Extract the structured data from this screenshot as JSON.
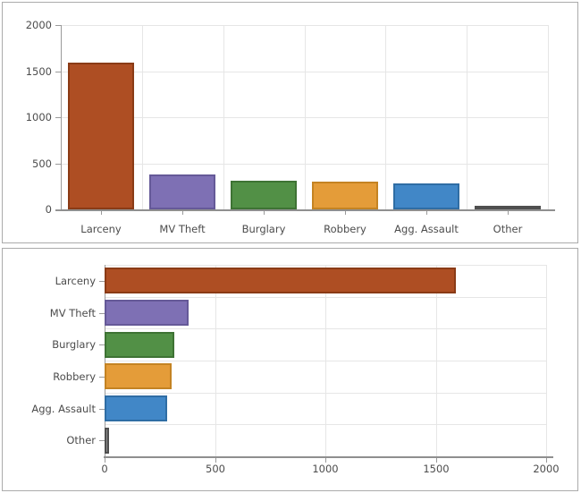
{
  "style": {
    "background": "#FFFFFF",
    "panel_border_color": "#ABABAB",
    "axis_color": "#9A9A9A",
    "baseline_color": "#8F8F8F",
    "grid_color": "#E6E6E6",
    "text_color": "#4C4C4C"
  },
  "chart_data": [
    {
      "type": "bar",
      "orientation": "vertical",
      "title": "",
      "xlabel": "",
      "ylabel": "",
      "categories": [
        "Larceny",
        "MV Theft",
        "Burglary",
        "Robbery",
        "Agg. Assault",
        "Other"
      ],
      "values": [
        1590,
        380,
        315,
        305,
        285,
        20
      ],
      "bar_colors": [
        "#AE4E23",
        "#7E70B4",
        "#529046",
        "#E49C39",
        "#4187C7",
        "#8A8A8A"
      ],
      "bar_border_colors": [
        "#8A3B16",
        "#655998",
        "#3E7334",
        "#C48323",
        "#2F6DA4",
        "#4F4F4F"
      ],
      "value_axis": {
        "ticks": [
          0,
          500,
          1000,
          1500,
          2000
        ],
        "lim": [
          0,
          2000
        ]
      },
      "grid": true,
      "legend": "none"
    },
    {
      "type": "bar",
      "orientation": "horizontal",
      "title": "",
      "xlabel": "",
      "ylabel": "",
      "categories": [
        "Larceny",
        "MV Theft",
        "Burglary",
        "Robbery",
        "Agg. Assault",
        "Other"
      ],
      "values": [
        1590,
        380,
        315,
        305,
        285,
        20
      ],
      "bar_colors": [
        "#AE4E23",
        "#7E70B4",
        "#529046",
        "#E49C39",
        "#4187C7",
        "#8A8A8A"
      ],
      "bar_border_colors": [
        "#8A3B16",
        "#655998",
        "#3E7334",
        "#C48323",
        "#2F6DA4",
        "#4F4F4F"
      ],
      "value_axis": {
        "ticks": [
          0,
          500,
          1000,
          1500,
          2000
        ],
        "lim": [
          0,
          2000
        ]
      },
      "grid": true,
      "legend": "none"
    }
  ]
}
